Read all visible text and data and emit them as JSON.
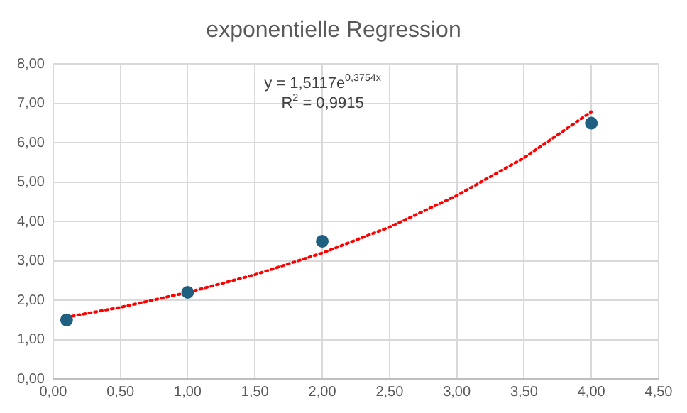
{
  "chart_data": {
    "type": "scatter",
    "title": "exponentielle Regression",
    "series": [
      {
        "type": "scatter",
        "color": "#1f5f7f",
        "x": [
          0.1,
          1,
          2,
          4
        ],
        "values": [
          1.5,
          2.2,
          3.5,
          6.5
        ],
        "marker": "circle"
      },
      {
        "type": "line",
        "color": "#ff0000",
        "line_style": "dotted",
        "marker": "none",
        "x": [
          0.1,
          0.5,
          1,
          1.5,
          2,
          2.5,
          3,
          3.5,
          4
        ],
        "values": [
          1.57,
          1.82,
          2.2,
          2.65,
          3.2,
          3.86,
          4.66,
          5.62,
          6.79
        ]
      }
    ],
    "annotations": [
      "y = 1,5117e$^{0,3754x}$",
      "R$^{2}$ = 0,9915"
    ],
    "xlim": [
      0,
      4.5
    ],
    "ylim": [
      0,
      8
    ],
    "xticks": [
      {
        "value": 0,
        "label": "0,00"
      },
      {
        "value": 0.5,
        "label": "0,50"
      },
      {
        "value": 1,
        "label": "1,00"
      },
      {
        "value": 1.5,
        "label": "1,50"
      },
      {
        "value": 2,
        "label": "2,00"
      },
      {
        "value": 2.5,
        "label": "2,50"
      },
      {
        "value": 3,
        "label": "3,00"
      },
      {
        "value": 3.5,
        "label": "3,50"
      },
      {
        "value": 4,
        "label": "4,00"
      },
      {
        "value": 4.5,
        "label": "4,50"
      }
    ],
    "yticks": [
      {
        "value": 0,
        "label": "0,00"
      },
      {
        "value": 1,
        "label": "1,00"
      },
      {
        "value": 2,
        "label": "2,00"
      },
      {
        "value": 3,
        "label": "3,00"
      },
      {
        "value": 4,
        "label": "4,00"
      },
      {
        "value": 5,
        "label": "5,00"
      },
      {
        "value": 6,
        "label": "6,00"
      },
      {
        "value": 7,
        "label": "7,00"
      },
      {
        "value": 8,
        "label": "8,00"
      }
    ],
    "grid": true,
    "legend": false
  }
}
